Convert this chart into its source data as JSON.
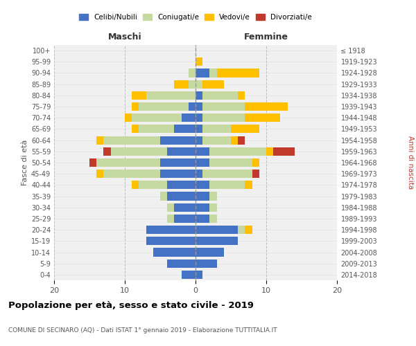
{
  "age_groups": [
    "0-4",
    "5-9",
    "10-14",
    "15-19",
    "20-24",
    "25-29",
    "30-34",
    "35-39",
    "40-44",
    "45-49",
    "50-54",
    "55-59",
    "60-64",
    "65-69",
    "70-74",
    "75-79",
    "80-84",
    "85-89",
    "90-94",
    "95-99",
    "100+"
  ],
  "birth_years": [
    "2014-2018",
    "2009-2013",
    "2004-2008",
    "1999-2003",
    "1994-1998",
    "1989-1993",
    "1984-1988",
    "1979-1983",
    "1974-1978",
    "1969-1973",
    "1964-1968",
    "1959-1963",
    "1954-1958",
    "1949-1953",
    "1944-1948",
    "1939-1943",
    "1934-1938",
    "1929-1933",
    "1924-1928",
    "1919-1923",
    "≤ 1918"
  ],
  "males": {
    "celibi": [
      2,
      4,
      6,
      7,
      7,
      3,
      3,
      4,
      4,
      5,
      5,
      4,
      5,
      3,
      2,
      1,
      0,
      0,
      0,
      0,
      0
    ],
    "coniugati": [
      0,
      0,
      0,
      0,
      0,
      1,
      1,
      1,
      4,
      8,
      9,
      8,
      8,
      5,
      7,
      7,
      7,
      1,
      1,
      0,
      0
    ],
    "vedovi": [
      0,
      0,
      0,
      0,
      0,
      0,
      0,
      0,
      1,
      1,
      0,
      0,
      1,
      1,
      1,
      1,
      2,
      2,
      0,
      0,
      0
    ],
    "divorziati": [
      0,
      0,
      0,
      0,
      0,
      0,
      0,
      0,
      0,
      0,
      1,
      1,
      0,
      0,
      0,
      0,
      0,
      0,
      0,
      0,
      0
    ]
  },
  "females": {
    "nubili": [
      1,
      3,
      4,
      6,
      6,
      2,
      2,
      2,
      2,
      1,
      2,
      2,
      1,
      1,
      1,
      1,
      1,
      0,
      2,
      0,
      0
    ],
    "coniugate": [
      0,
      0,
      0,
      0,
      1,
      1,
      1,
      1,
      5,
      7,
      6,
      8,
      4,
      4,
      6,
      6,
      5,
      1,
      1,
      0,
      0
    ],
    "vedove": [
      0,
      0,
      0,
      0,
      1,
      0,
      0,
      0,
      1,
      0,
      1,
      1,
      1,
      4,
      5,
      6,
      1,
      3,
      6,
      1,
      0
    ],
    "divorziate": [
      0,
      0,
      0,
      0,
      0,
      0,
      0,
      0,
      0,
      1,
      0,
      3,
      1,
      0,
      0,
      0,
      0,
      0,
      0,
      0,
      0
    ]
  },
  "colors": {
    "celibi_nubili": "#4472c4",
    "coniugati": "#c5d9a0",
    "vedovi": "#ffc000",
    "divorziati": "#c0392b"
  },
  "title": "Popolazione per età, sesso e stato civile - 2019",
  "subtitle": "COMUNE DI SECINARO (AQ) - Dati ISTAT 1° gennaio 2019 - Elaborazione TUTTITALIA.IT",
  "xlabel_left": "Maschi",
  "xlabel_right": "Femmine",
  "ylabel_left": "Fasce di età",
  "ylabel_right": "Anni di nascita",
  "xlim": 20,
  "legend_labels": [
    "Celibi/Nubili",
    "Coniugati/e",
    "Vedovi/e",
    "Divorziati/e"
  ],
  "background_color": "#ffffff",
  "plot_bg": "#f0f0f0"
}
